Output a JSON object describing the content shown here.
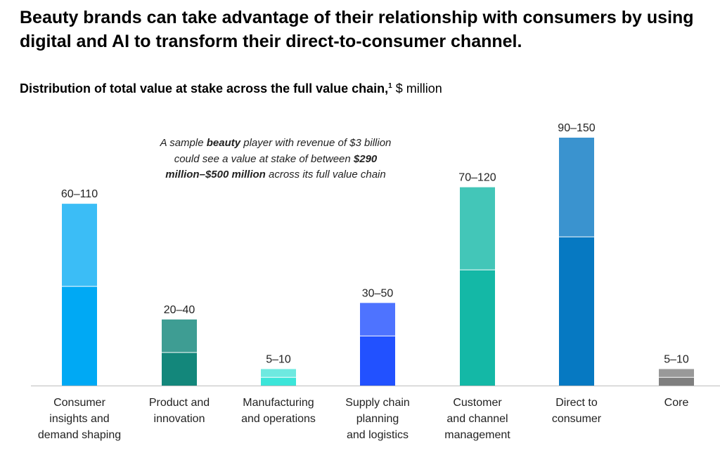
{
  "headline": "Beauty brands can take advantage of their relationship with consumers by using digital and AI to transform their direct-to-consumer channel.",
  "subtitle": {
    "bold": "Distribution of total value at stake across the full value chain,",
    "footnote": "1",
    "unit": " $ million"
  },
  "annotation": {
    "p1": "A sample ",
    "b1": "beauty",
    "p2": " player with revenue of $3 billion could see a value at stake of between ",
    "b2": "$290 million–$500 million",
    "p3": " across its full value chain"
  },
  "chart_data": {
    "type": "bar",
    "stacked": true,
    "title": "Distribution of total value at stake across the full value chain, $ million",
    "categories": [
      [
        "Consumer",
        "insights and",
        "demand shaping"
      ],
      [
        "Product and",
        "innovation"
      ],
      [
        "Manufacturing",
        "and operations"
      ],
      [
        "Supply chain",
        "planning",
        "and logistics"
      ],
      [
        "Customer",
        "and channel",
        "management"
      ],
      [
        "Direct to",
        "consumer"
      ],
      [
        "Core"
      ]
    ],
    "low": [
      60,
      20,
      5,
      30,
      70,
      90,
      5
    ],
    "high": [
      110,
      40,
      10,
      50,
      120,
      150,
      10
    ],
    "range_labels": [
      "60–110",
      "20–40",
      "5–10",
      "30–50",
      "70–120",
      "90–150",
      "5–10"
    ],
    "colors": {
      "low": [
        "#00a9f4",
        "#13877b",
        "#3ce5d9",
        "#2251ff",
        "#14b8a6",
        "#0679c2",
        "#7f7f7f"
      ],
      "high": [
        "#3bbdf6",
        "#3e9d93",
        "#6ee9e0",
        "#4e73ff",
        "#43c6b8",
        "#3a93cf",
        "#999999"
      ]
    },
    "ylim": [
      0,
      150
    ],
    "grid": false
  }
}
